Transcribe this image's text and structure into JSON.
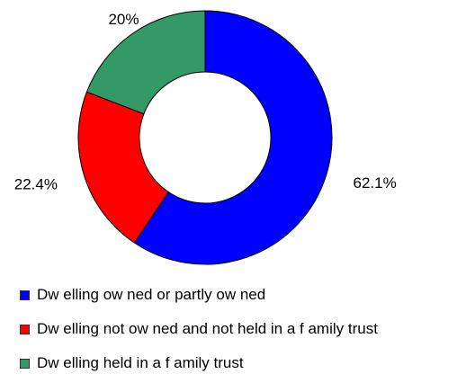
{
  "chart_data": {
    "type": "pie",
    "variant": "donut",
    "title": "",
    "start_angle_deg": 0,
    "direction": "clockwise",
    "slices": [
      {
        "label": "Dw elling ow ned or partly ow ned",
        "value": 62.1,
        "display": "62.1%",
        "color": "#0000ff"
      },
      {
        "label": "Dw elling not ow ned and not held in a f amily trust",
        "value": 22.4,
        "display": "22.4%",
        "color": "#ff0000"
      },
      {
        "label": "Dw elling held in a f amily trust",
        "value": 20,
        "display": "20%",
        "color": "#339966"
      }
    ],
    "legend_position": "bottom-left"
  }
}
